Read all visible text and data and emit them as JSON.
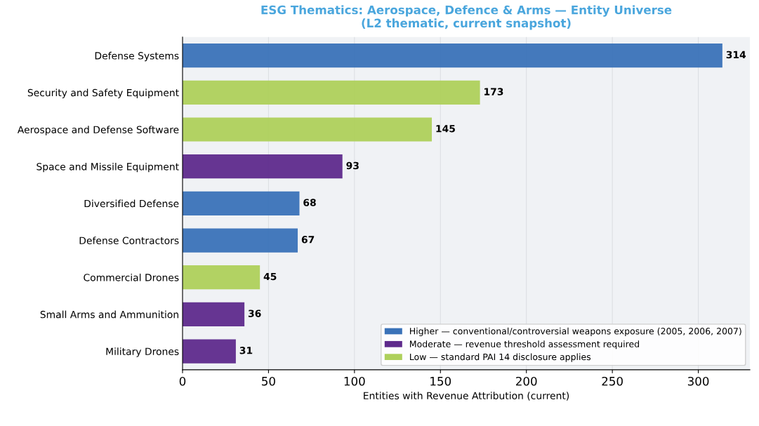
{
  "chart_data": {
    "type": "bar",
    "orientation": "horizontal",
    "title": "ESG Thematics: Aerospace, Defence & Arms — Entity Universe\n(L2 thematic, current snapshot)",
    "xlabel": "Entities with Revenue Attribution (current)",
    "categories": [
      "Defense Systems",
      "Security and Safety Equipment",
      "Aerospace and Defense Software",
      "Space and Missile Equipment",
      "Diversified Defense",
      "Defense Contractors",
      "Commercial Drones",
      "Small Arms and Ammunition",
      "Military Drones"
    ],
    "series": [
      {
        "name": "Higher — conventional/controversial weapons exposure (2005, 2006, 2007)",
        "color": "#3a72b8",
        "values": [
          314,
          null,
          null,
          null,
          68,
          67,
          null,
          null,
          null
        ]
      },
      {
        "name": "Moderate — revenue threshold assessment required",
        "color": "#5e2a8c",
        "values": [
          null,
          null,
          null,
          93,
          null,
          null,
          null,
          36,
          31
        ]
      },
      {
        "name": "Low — standard PAI 14 disclosure applies",
        "color": "#aed05b",
        "values": [
          null,
          173,
          145,
          null,
          null,
          null,
          45,
          null,
          null
        ]
      }
    ],
    "xlim": [
      0,
      330
    ],
    "xticks": [
      0,
      50,
      100,
      150,
      200,
      250,
      300
    ],
    "grid": "x",
    "legend": "bottom right",
    "data_labels": true
  }
}
